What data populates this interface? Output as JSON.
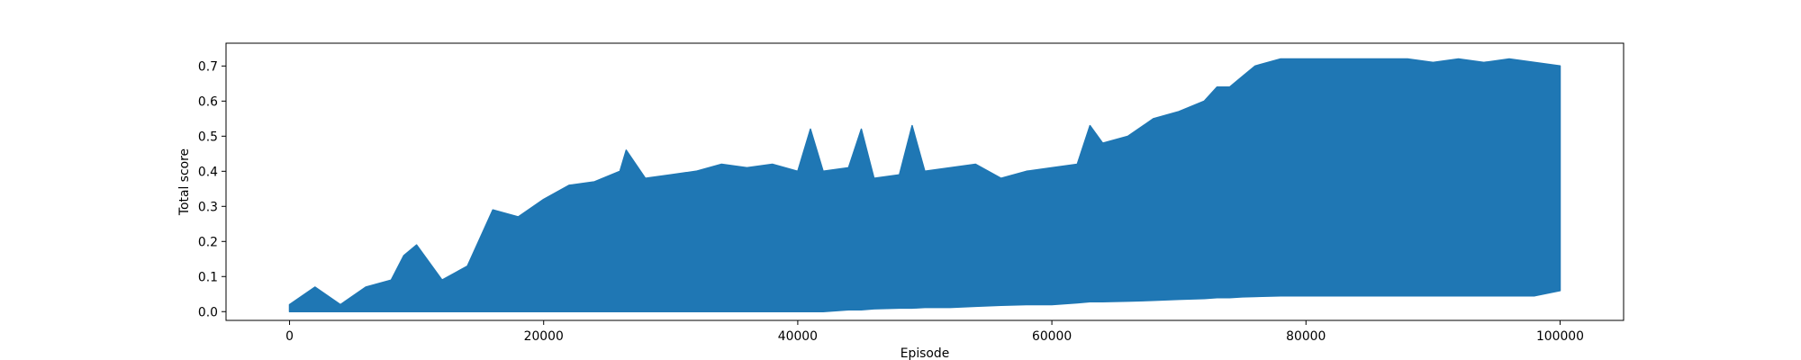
{
  "chart_data": {
    "type": "line",
    "title": "",
    "xlabel": "Episode",
    "ylabel": "Total score",
    "xlim": [
      -5000,
      105000
    ],
    "ylim": [
      -0.025,
      0.765
    ],
    "xticks": [
      0,
      20000,
      40000,
      60000,
      80000,
      100000
    ],
    "xtick_labels": [
      "0",
      "20000",
      "40000",
      "60000",
      "80000",
      "100000"
    ],
    "yticks": [
      0.0,
      0.1,
      0.2,
      0.3,
      0.4,
      0.5,
      0.6,
      0.7
    ],
    "ytick_labels": [
      "0.0",
      "0.1",
      "0.2",
      "0.3",
      "0.4",
      "0.5",
      "0.6",
      "0.7"
    ],
    "grid": false,
    "legend": "none",
    "series_color": "#1f77b4",
    "series": [
      {
        "x": [
          0,
          2000,
          4000,
          6000,
          8000,
          9000,
          10000,
          12000,
          14000,
          16000,
          18000,
          20000,
          22000,
          24000,
          26000,
          26500,
          28000,
          30000,
          32000,
          34000,
          36000,
          38000,
          40000,
          41000,
          42000,
          44000,
          45000,
          46000,
          48000,
          49000,
          50000,
          52000,
          54000,
          56000,
          58000,
          60000,
          62000,
          63000,
          64000,
          66000,
          68000,
          70000,
          72000,
          73000,
          74000,
          75000,
          76000,
          78000,
          80000,
          82000,
          84000,
          86000,
          88000,
          90000,
          92000,
          94000,
          96000,
          98000,
          100000
        ],
        "upper": [
          0.02,
          0.07,
          0.02,
          0.07,
          0.09,
          0.16,
          0.19,
          0.09,
          0.13,
          0.29,
          0.27,
          0.32,
          0.36,
          0.37,
          0.4,
          0.46,
          0.38,
          0.39,
          0.4,
          0.42,
          0.41,
          0.42,
          0.4,
          0.52,
          0.4,
          0.41,
          0.52,
          0.38,
          0.39,
          0.53,
          0.4,
          0.41,
          0.42,
          0.38,
          0.4,
          0.41,
          0.42,
          0.53,
          0.48,
          0.5,
          0.55,
          0.57,
          0.6,
          0.64,
          0.64,
          0.67,
          0.7,
          0.72,
          0.72,
          0.72,
          0.72,
          0.72,
          0.72,
          0.71,
          0.72,
          0.71,
          0.72,
          0.71,
          0.7
        ],
        "lower": [
          0.0,
          0.0,
          0.0,
          0.0,
          0.0,
          0.0,
          0.0,
          0.0,
          0.0,
          0.0,
          0.0,
          0.0,
          0.0,
          0.0,
          0.0,
          0.0,
          0.0,
          0.0,
          0.0,
          0.0,
          0.0,
          0.0,
          0.0,
          0.0,
          0.0,
          0.005,
          0.005,
          0.008,
          0.01,
          0.01,
          0.012,
          0.012,
          0.015,
          0.018,
          0.02,
          0.02,
          0.025,
          0.028,
          0.028,
          0.03,
          0.032,
          0.035,
          0.037,
          0.04,
          0.04,
          0.042,
          0.043,
          0.045,
          0.045,
          0.045,
          0.045,
          0.045,
          0.045,
          0.045,
          0.045,
          0.045,
          0.045,
          0.045,
          0.06
        ]
      }
    ]
  }
}
